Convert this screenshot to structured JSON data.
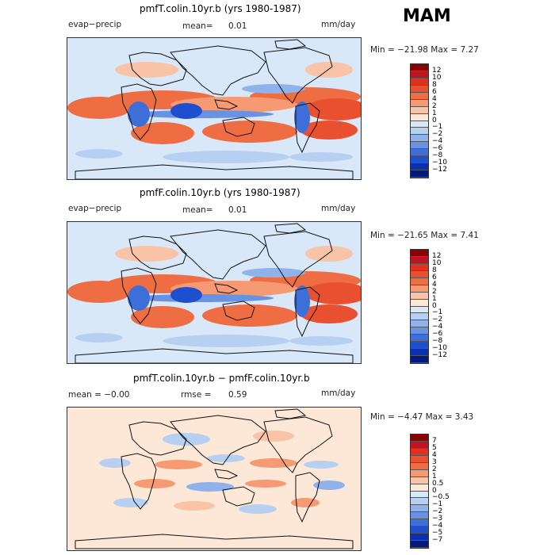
{
  "season": "MAM",
  "panels": [
    {
      "title": "pmfT.colin.10yr.b (yrs 1980-1987)",
      "left_label": "evap−precip",
      "mid_label": "mean=",
      "mid_value": "0.01",
      "units": "mm/day",
      "minmax": "Min = −21.98 Max =    7.27",
      "levels": [
        "12",
        "10",
        "8",
        "6",
        "4",
        "2",
        "1",
        "0",
        "−1",
        "−2",
        "−4",
        "−6",
        "−8",
        "−10",
        "−12"
      ],
      "colors": [
        "#8b0000",
        "#c1121f",
        "#e0301e",
        "#e8502f",
        "#ef6d43",
        "#f59a72",
        "#f8c3a6",
        "#fde8d8",
        "#d9e8f8",
        "#b7cff1",
        "#90b2ea",
        "#6a92e2",
        "#3e6fd8",
        "#1e4fce",
        "#0a2fb0",
        "#001a80"
      ]
    },
    {
      "title": "pmfF.colin.10yr.b (yrs 1980-1987)",
      "left_label": "evap−precip",
      "mid_label": "mean=",
      "mid_value": "0.01",
      "units": "mm/day",
      "minmax": "Min = −21.65 Max =    7.41",
      "levels": [
        "12",
        "10",
        "8",
        "6",
        "4",
        "2",
        "1",
        "0",
        "−1",
        "−2",
        "−4",
        "−6",
        "−8",
        "−10",
        "−12"
      ],
      "colors": [
        "#8b0000",
        "#c1121f",
        "#e0301e",
        "#e8502f",
        "#ef6d43",
        "#f59a72",
        "#f8c3a6",
        "#fde8d8",
        "#d9e8f8",
        "#b7cff1",
        "#90b2ea",
        "#6a92e2",
        "#3e6fd8",
        "#1e4fce",
        "#0a2fb0",
        "#001a80"
      ]
    },
    {
      "title": "pmfT.colin.10yr.b − pmfF.colin.10yr.b",
      "left_label": "mean =   −0.00",
      "mid_label": "rmse =",
      "mid_value": "0.59",
      "units": "mm/day",
      "minmax": "Min =   −4.47 Max =    3.43",
      "levels": [
        "7",
        "5",
        "4",
        "3",
        "2",
        "1",
        "0.5",
        "0",
        "−0.5",
        "−1",
        "−2",
        "−3",
        "−4",
        "−5",
        "−7"
      ],
      "colors": [
        "#8b0000",
        "#c1121f",
        "#e0301e",
        "#e8502f",
        "#ef6d43",
        "#f59a72",
        "#f8c3a6",
        "#fde8d8",
        "#d9e8f8",
        "#b7cff1",
        "#90b2ea",
        "#6a92e2",
        "#3e6fd8",
        "#1e4fce",
        "#0a2fb0",
        "#001a80"
      ]
    }
  ]
}
